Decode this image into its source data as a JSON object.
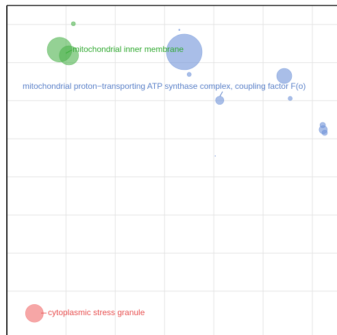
{
  "chart_data": {
    "type": "scatter",
    "xlim": [
      -0.2,
      6.5
    ],
    "ylim": [
      -0.15,
      8.5
    ],
    "xticks": [
      1,
      2,
      3,
      4,
      5,
      6
    ],
    "yticks": [
      1,
      2,
      3,
      4,
      5,
      6,
      7,
      8
    ],
    "grid": true,
    "series": [
      {
        "color": "#4db34d",
        "x": [
          0.87,
          1.06,
          1.15
        ],
        "values": [
          7.34,
          7.19,
          8.02
        ],
        "sizes": [
          324,
          196,
          9
        ]
      },
      {
        "color": "#6f93d8",
        "x": [
          3.4,
          3.5,
          3.3,
          4.12,
          5.43,
          5.55,
          6.21,
          6.22,
          6.25,
          4.03
        ],
        "values": [
          7.28,
          6.69,
          7.86,
          6.01,
          6.65,
          6.06,
          5.36,
          5.24,
          5.16,
          4.55
        ],
        "sizes": [
          676,
          9,
          1,
          36,
          121,
          9,
          16,
          36,
          16,
          0.25
        ]
      },
      {
        "color": "#f06b6b",
        "x": [
          0.36
        ],
        "values": [
          0.42
        ],
        "sizes": [
          169
        ]
      }
    ],
    "annotations": [
      {
        "text": "mitochondrial inner membrane",
        "color": "#2ea82e"
      },
      {
        "text": "mitochondrial proton−transporting ATP synthase complex, coupling factor F(o)",
        "color": "#5a80c8"
      },
      {
        "text": "cytoplasmic stress granule",
        "color": "#e85050"
      }
    ]
  }
}
